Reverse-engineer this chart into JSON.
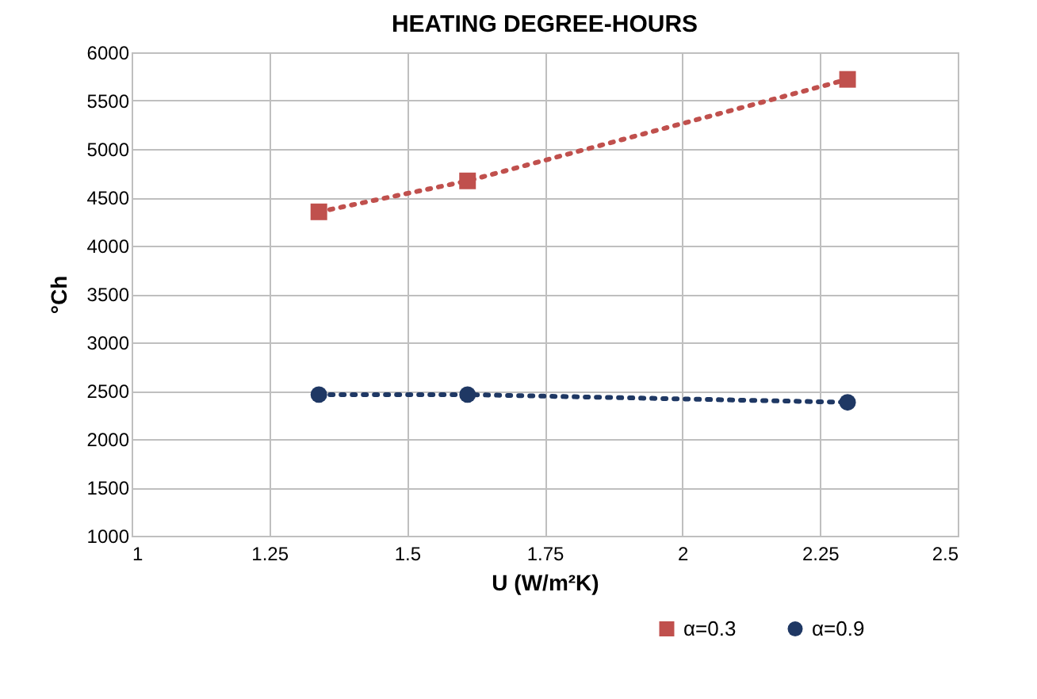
{
  "chart_data": {
    "type": "line",
    "title": "HEATING DEGREE-HOURS",
    "xlabel": "U (W/m²K)",
    "ylabel": "°Ch",
    "x": [
      1.34,
      1.61,
      2.3
    ],
    "series": [
      {
        "name": "α=0.3",
        "color": "#c0504d",
        "marker": "square",
        "values": [
          4350,
          4670,
          5720
        ]
      },
      {
        "name": "α=0.9",
        "color": "#1f3864",
        "marker": "circle",
        "values": [
          2460,
          2460,
          2380
        ]
      }
    ],
    "xlim": [
      1,
      2.5
    ],
    "xticks": [
      1,
      1.25,
      1.5,
      1.75,
      2,
      2.25,
      2.5
    ],
    "ylim": [
      1000,
      6000
    ],
    "yticks": [
      1000,
      1500,
      2000,
      2500,
      3000,
      3500,
      4000,
      4500,
      5000,
      5500,
      6000
    ],
    "grid": true,
    "legend": "bottom right",
    "line_style": "dotted"
  }
}
